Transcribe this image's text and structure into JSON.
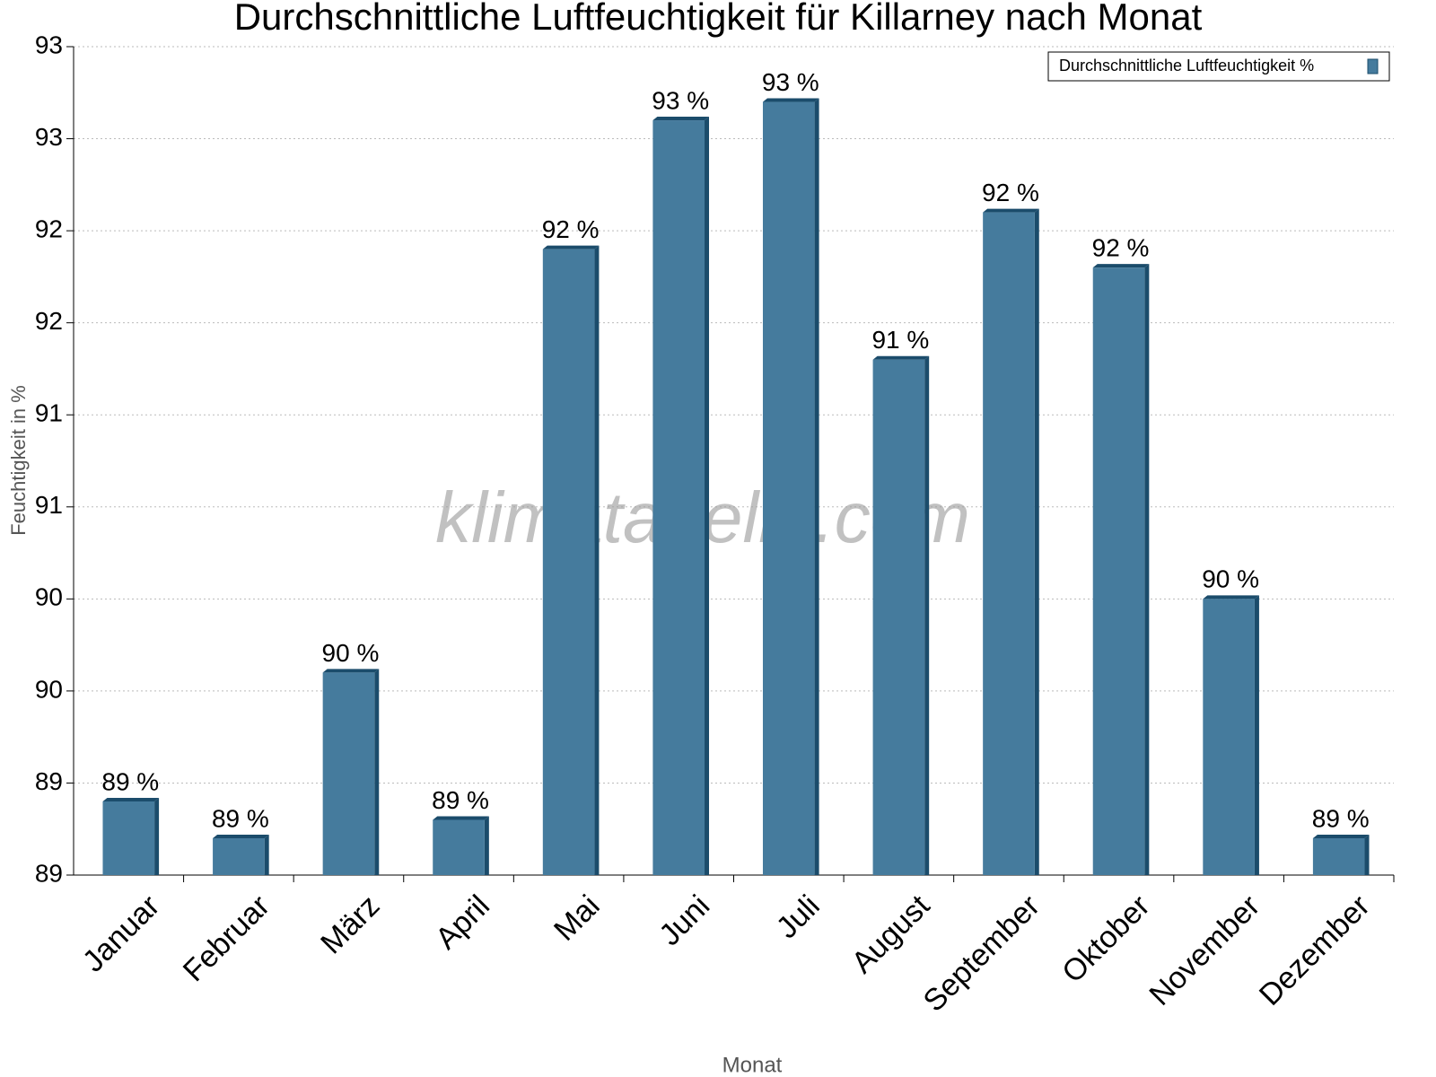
{
  "chart_data": {
    "type": "bar",
    "title": "Durchschnittliche Luftfeuchtigkeit für Killarney nach Monat",
    "x_label": "Monat",
    "y_label": "Feuchtigkeit in %",
    "watermark": "klimatabelle.com",
    "categories": [
      "Januar",
      "Februar",
      "März",
      "April",
      "Mai",
      "Juni",
      "Juli",
      "August",
      "September",
      "Oktober",
      "November",
      "Dezember"
    ],
    "series": [
      {
        "name": "Durchschnittliche Luftfeuchtigkeit %",
        "color": "#457b9d",
        "values": [
          88.9,
          88.7,
          89.6,
          88.8,
          91.9,
          92.6,
          92.7,
          91.3,
          92.1,
          91.8,
          90.0,
          88.7
        ],
        "value_labels": [
          "89 %",
          "89 %",
          "90 %",
          "89 %",
          "92 %",
          "93 %",
          "93 %",
          "91 %",
          "92 %",
          "92 %",
          "90 %",
          "89 %"
        ]
      }
    ],
    "ylim": [
      88.5,
      93
    ],
    "yticks": [
      {
        "value": 88.5,
        "label": "89"
      },
      89,
      {
        "value": 89.5,
        "label": "90"
      },
      90,
      {
        "value": 90.5,
        "label": "91"
      },
      91,
      {
        "value": 91.5,
        "label": "92"
      },
      92,
      {
        "value": 92.5,
        "label": "93"
      },
      93
    ],
    "grid": true,
    "legend": "top-right"
  }
}
